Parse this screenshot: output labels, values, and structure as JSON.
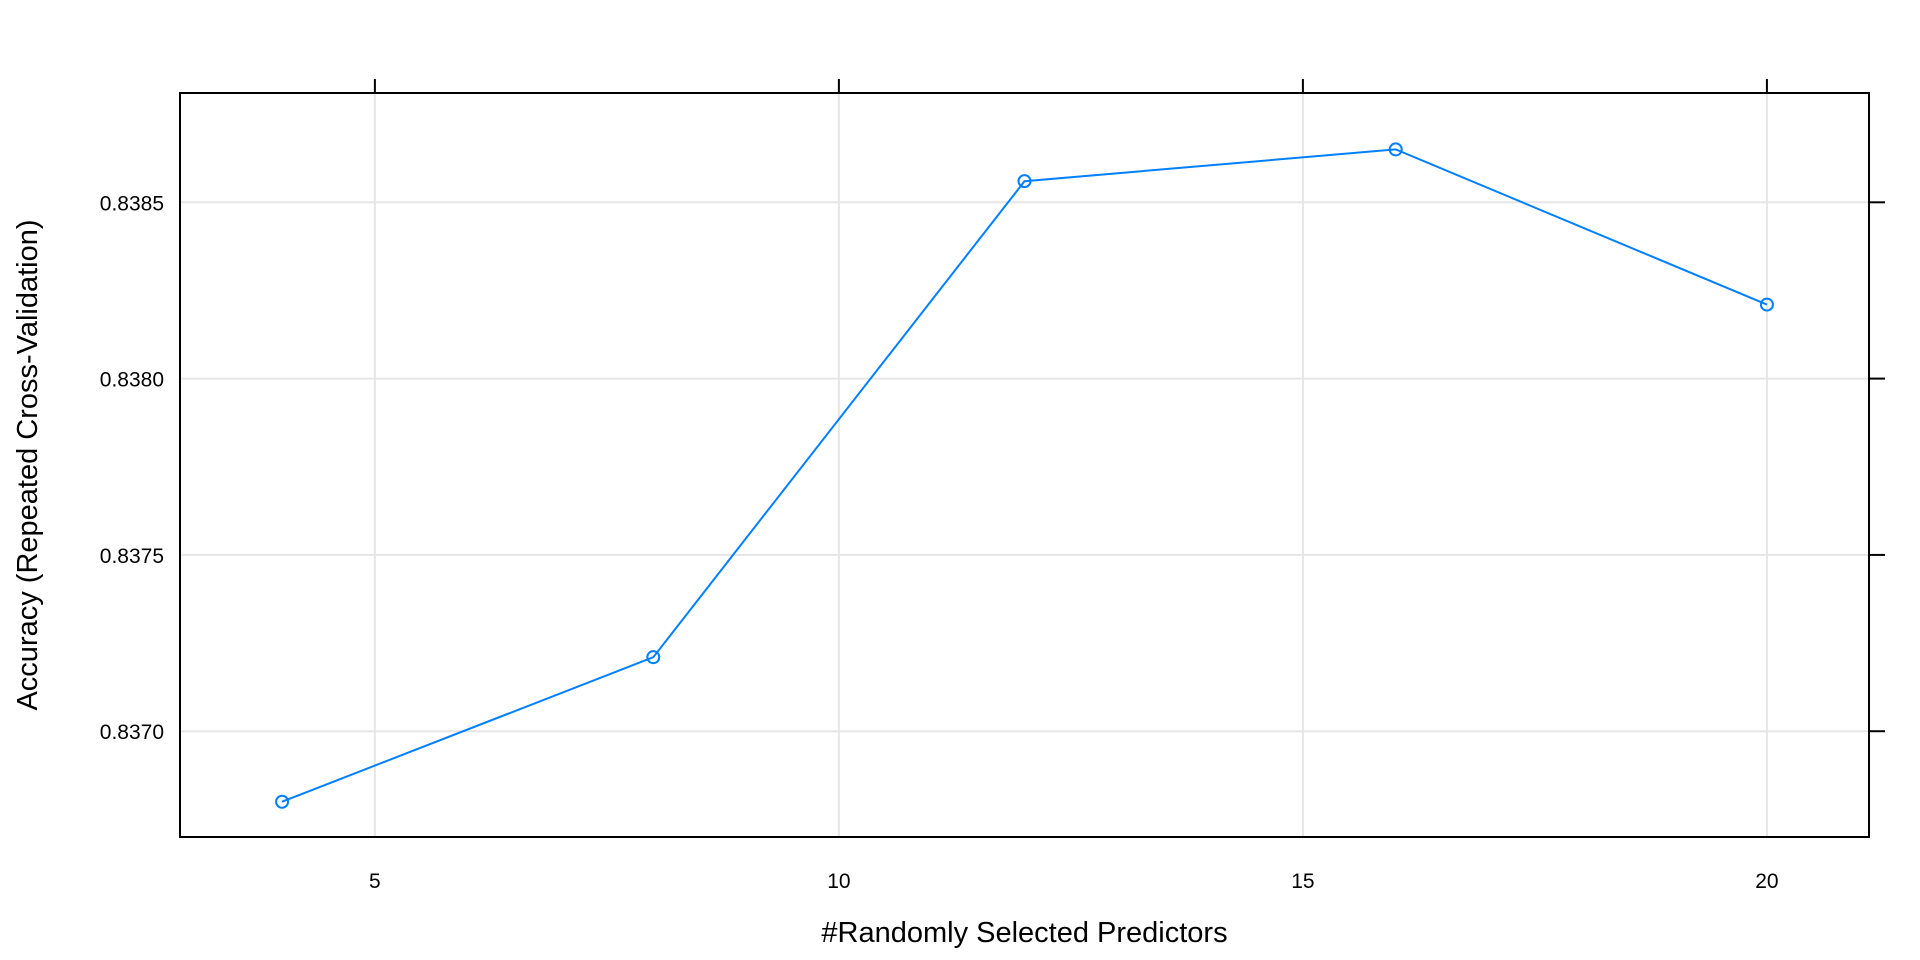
{
  "chart_data": {
    "type": "line",
    "title": "",
    "xlabel": "#Randomly Selected Predictors",
    "ylabel": "Accuracy (Repeated Cross-Validation)",
    "xlim": [
      2.9,
      21.1
    ],
    "ylim": [
      0.8367,
      0.83881
    ],
    "x_ticks": [
      5,
      10,
      15,
      20
    ],
    "x_tick_labels": [
      "5",
      "10",
      "15",
      "20"
    ],
    "y_ticks": [
      0.837,
      0.8375,
      0.838,
      0.8385
    ],
    "y_tick_labels": [
      "0.8370",
      "0.8375",
      "0.8380",
      "0.8385"
    ],
    "grid": true,
    "legend": "none",
    "series": [
      {
        "x": [
          4,
          8,
          12,
          16,
          20
        ],
        "y": [
          0.8368,
          0.83721,
          0.83856,
          0.83865,
          0.83821
        ],
        "color": "#0080ff",
        "marker": "open-circle"
      }
    ]
  }
}
